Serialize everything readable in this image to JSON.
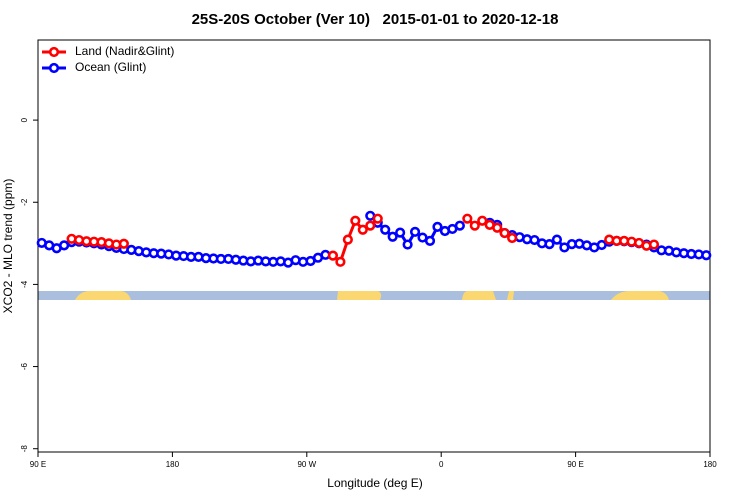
{
  "chart_data": {
    "type": "line",
    "title": "25S-20S October (Ver 10)   2015-01-01 to 2020-12-18",
    "x_label": "Longitude (deg E)",
    "y_label": "XCO2 - MLO trend (ppm)",
    "xlim": [
      90,
      540
    ],
    "ylim": [
      -8.08,
      1.95
    ],
    "xticks": [
      {
        "value": 90,
        "label": "90 E"
      },
      180,
      {
        "value": 270,
        "label": "90 W"
      },
      {
        "value": 360,
        "label": "0"
      },
      {
        "value": 450,
        "label": "90 E"
      },
      {
        "value": 540,
        "label": "180"
      }
    ],
    "yticks": [
      0,
      -2,
      -4,
      -6,
      -8
    ],
    "legend": "top-left",
    "series": [
      {
        "name": "Land (Nadir&Glint)",
        "color": "#ff0000",
        "x": [
          112.5,
          117.5,
          122.5,
          127.5,
          132.5,
          137.5,
          142.5,
          147.5,
          152.5,
          287.5,
          292.5,
          297.5,
          302.5,
          307.5,
          312.5,
          317.5,
          322.5,
          377.5,
          382.5,
          387.5,
          392.5,
          397.5,
          402.5,
          407.5,
          412.5,
          472.5,
          477.5,
          482.5,
          487.5,
          492.5,
          497.5,
          502.5
        ],
        "values": [
          -2.89,
          -2.92,
          -2.95,
          -2.96,
          -2.97,
          -3.0,
          -3.03,
          -3.01,
          null,
          -3.3,
          -3.45,
          -2.91,
          -2.45,
          -2.67,
          -2.57,
          -2.4,
          null,
          -2.4,
          -2.57,
          -2.45,
          -2.55,
          -2.62,
          -2.75,
          -2.87,
          null,
          -2.91,
          -2.94,
          -2.94,
          -2.96,
          -2.99,
          -3.06,
          -3.03
        ]
      },
      {
        "name": "Ocean (Glint)",
        "color": "#0000ff",
        "x": [
          92.5,
          97.5,
          102.5,
          107.5,
          112.5,
          117.5,
          122.5,
          127.5,
          132.5,
          137.5,
          142.5,
          147.5,
          152.5,
          157.5,
          162.5,
          167.5,
          172.5,
          177.5,
          182.5,
          187.5,
          192.5,
          197.5,
          202.5,
          207.5,
          212.5,
          217.5,
          222.5,
          227.5,
          232.5,
          237.5,
          242.5,
          247.5,
          252.5,
          257.5,
          262.5,
          267.5,
          272.5,
          277.5,
          282.5,
          287.5,
          312.5,
          317.5,
          322.5,
          327.5,
          332.5,
          337.5,
          342.5,
          347.5,
          352.5,
          357.5,
          362.5,
          367.5,
          372.5,
          377.5,
          392.5,
          397.5,
          402.5,
          407.5,
          412.5,
          417.5,
          422.5,
          427.5,
          432.5,
          437.5,
          442.5,
          447.5,
          452.5,
          457.5,
          462.5,
          467.5,
          472.5,
          477.5,
          482.5,
          487.5,
          492.5,
          497.5,
          502.5,
          507.5,
          512.5,
          517.5,
          522.5,
          527.5,
          532.5,
          537.5
        ],
        "values": [
          -2.99,
          -3.05,
          -3.12,
          -3.05,
          -2.97,
          -2.96,
          -2.98,
          -3.0,
          -3.03,
          -3.07,
          -3.11,
          -3.14,
          -3.16,
          -3.19,
          -3.22,
          -3.24,
          -3.25,
          -3.27,
          -3.3,
          -3.31,
          -3.33,
          -3.33,
          -3.36,
          -3.37,
          -3.38,
          -3.38,
          -3.4,
          -3.42,
          -3.44,
          -3.42,
          -3.44,
          -3.45,
          -3.44,
          -3.47,
          -3.41,
          -3.45,
          -3.43,
          -3.35,
          -3.28,
          null,
          -2.33,
          -2.5,
          -2.67,
          -2.84,
          -2.74,
          -3.03,
          -2.72,
          -2.86,
          -2.94,
          -2.6,
          -2.7,
          -2.65,
          -2.57,
          null,
          -2.5,
          -2.55,
          -2.75,
          -2.8,
          -2.85,
          -2.9,
          -2.92,
          -3.0,
          -3.02,
          -2.91,
          -3.1,
          -3.02,
          -3.01,
          -3.05,
          -3.1,
          -3.04,
          -2.96,
          -2.94,
          -2.95,
          -2.97,
          -3.0,
          -3.03,
          -3.1,
          -3.17,
          -3.18,
          -3.22,
          -3.24,
          -3.26,
          -3.27,
          -3.29
        ]
      }
    ]
  }
}
